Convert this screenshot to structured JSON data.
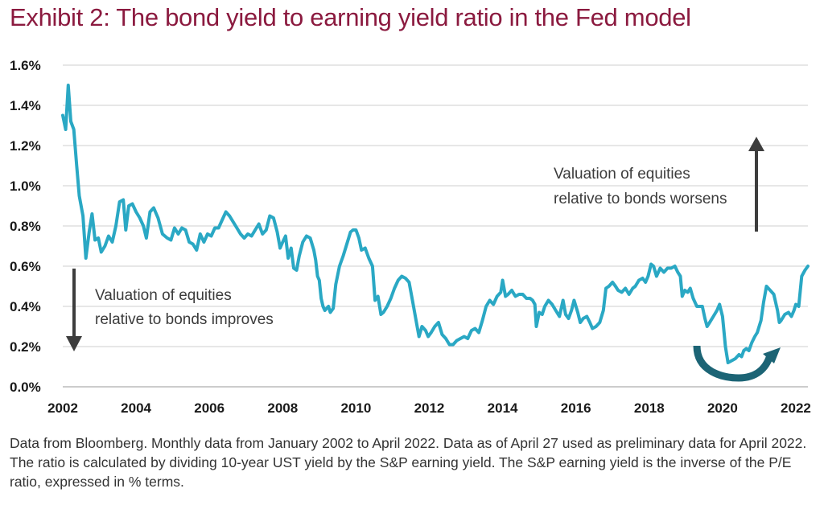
{
  "colors": {
    "title": "#8b1a3f",
    "line": "#2aa8c4",
    "arrow": "#3d3d3d",
    "curved_arrow": "#1c6475",
    "grid": "#cfcfcf"
  },
  "icons": {
    "up_arrow": "arrow-up-icon",
    "down_arrow": "arrow-down-icon",
    "curved_arrow": "curved-arrow-icon"
  },
  "footnote": "Data from Bloomberg. Monthly data from January 2002 to April 2022. Data as of April 27 used as preliminary data for April 2022. The ratio is calculated by dividing 10-year UST yield by the S&P earning yield. The S&P earning yield is the inverse of the P/E ratio, expressed in % terms.",
  "chart_data": {
    "type": "line",
    "title": "Exhibit 2: The bond yield to earning yield ratio in the Fed model",
    "xlabel": "",
    "ylabel": "",
    "xlim": [
      2002,
      2022.33
    ],
    "ylim": [
      0,
      1.6
    ],
    "grid": true,
    "x_ticks": [
      "2002",
      "2004",
      "2006",
      "2008",
      "2010",
      "2012",
      "2014",
      "2016",
      "2018",
      "2020",
      "2022"
    ],
    "y_ticks": [
      "0.0%",
      "0.2%",
      "0.4%",
      "0.6%",
      "0.8%",
      "1.0%",
      "1.2%",
      "1.4%",
      "1.6%"
    ],
    "annotations": {
      "worsens": [
        "Valuation of equities",
        "relative to bonds worsens"
      ],
      "improves": [
        "Valuation of equities",
        "relative to bonds improves"
      ]
    },
    "series": [
      {
        "values": [
          [
            2002.0,
            1.35
          ],
          [
            2002.08,
            1.28
          ],
          [
            2002.15,
            1.5
          ],
          [
            2002.22,
            1.32
          ],
          [
            2002.3,
            1.28
          ],
          [
            2002.38,
            1.1
          ],
          [
            2002.45,
            0.95
          ],
          [
            2002.55,
            0.85
          ],
          [
            2002.63,
            0.64
          ],
          [
            2002.72,
            0.77
          ],
          [
            2002.8,
            0.86
          ],
          [
            2002.88,
            0.73
          ],
          [
            2002.97,
            0.74
          ],
          [
            2003.05,
            0.67
          ],
          [
            2003.15,
            0.7
          ],
          [
            2003.25,
            0.75
          ],
          [
            2003.35,
            0.72
          ],
          [
            2003.45,
            0.8
          ],
          [
            2003.55,
            0.92
          ],
          [
            2003.65,
            0.93
          ],
          [
            2003.72,
            0.78
          ],
          [
            2003.8,
            0.9
          ],
          [
            2003.9,
            0.91
          ],
          [
            2004.0,
            0.87
          ],
          [
            2004.1,
            0.84
          ],
          [
            2004.2,
            0.8
          ],
          [
            2004.28,
            0.74
          ],
          [
            2004.38,
            0.87
          ],
          [
            2004.48,
            0.89
          ],
          [
            2004.6,
            0.84
          ],
          [
            2004.72,
            0.76
          ],
          [
            2004.85,
            0.74
          ],
          [
            2004.95,
            0.73
          ],
          [
            2005.05,
            0.79
          ],
          [
            2005.15,
            0.76
          ],
          [
            2005.25,
            0.79
          ],
          [
            2005.35,
            0.78
          ],
          [
            2005.45,
            0.72
          ],
          [
            2005.55,
            0.71
          ],
          [
            2005.65,
            0.68
          ],
          [
            2005.75,
            0.76
          ],
          [
            2005.85,
            0.72
          ],
          [
            2005.95,
            0.76
          ],
          [
            2006.05,
            0.75
          ],
          [
            2006.15,
            0.79
          ],
          [
            2006.25,
            0.79
          ],
          [
            2006.35,
            0.83
          ],
          [
            2006.45,
            0.87
          ],
          [
            2006.55,
            0.85
          ],
          [
            2006.65,
            0.82
          ],
          [
            2006.75,
            0.79
          ],
          [
            2006.85,
            0.76
          ],
          [
            2006.95,
            0.74
          ],
          [
            2007.05,
            0.76
          ],
          [
            2007.15,
            0.75
          ],
          [
            2007.25,
            0.78
          ],
          [
            2007.35,
            0.81
          ],
          [
            2007.45,
            0.76
          ],
          [
            2007.55,
            0.78
          ],
          [
            2007.65,
            0.85
          ],
          [
            2007.75,
            0.84
          ],
          [
            2007.85,
            0.77
          ],
          [
            2007.93,
            0.69
          ],
          [
            2008.0,
            0.72
          ],
          [
            2008.08,
            0.75
          ],
          [
            2008.15,
            0.64
          ],
          [
            2008.23,
            0.69
          ],
          [
            2008.3,
            0.59
          ],
          [
            2008.38,
            0.58
          ],
          [
            2008.45,
            0.65
          ],
          [
            2008.55,
            0.72
          ],
          [
            2008.65,
            0.75
          ],
          [
            2008.75,
            0.74
          ],
          [
            2008.85,
            0.68
          ],
          [
            2008.9,
            0.63
          ],
          [
            2008.95,
            0.55
          ],
          [
            2009.0,
            0.53
          ],
          [
            2009.05,
            0.44
          ],
          [
            2009.1,
            0.4
          ],
          [
            2009.15,
            0.38
          ],
          [
            2009.2,
            0.39
          ],
          [
            2009.25,
            0.4
          ],
          [
            2009.3,
            0.37
          ],
          [
            2009.38,
            0.39
          ],
          [
            2009.45,
            0.51
          ],
          [
            2009.55,
            0.6
          ],
          [
            2009.65,
            0.65
          ],
          [
            2009.75,
            0.71
          ],
          [
            2009.85,
            0.77
          ],
          [
            2009.92,
            0.78
          ],
          [
            2010.0,
            0.78
          ],
          [
            2010.08,
            0.74
          ],
          [
            2010.15,
            0.68
          ],
          [
            2010.25,
            0.69
          ],
          [
            2010.35,
            0.64
          ],
          [
            2010.45,
            0.6
          ],
          [
            2010.52,
            0.43
          ],
          [
            2010.6,
            0.45
          ],
          [
            2010.68,
            0.36
          ],
          [
            2010.75,
            0.37
          ],
          [
            2010.85,
            0.4
          ],
          [
            2010.95,
            0.44
          ],
          [
            2011.05,
            0.49
          ],
          [
            2011.15,
            0.53
          ],
          [
            2011.25,
            0.55
          ],
          [
            2011.35,
            0.54
          ],
          [
            2011.45,
            0.52
          ],
          [
            2011.55,
            0.42
          ],
          [
            2011.65,
            0.32
          ],
          [
            2011.72,
            0.25
          ],
          [
            2011.8,
            0.3
          ],
          [
            2011.9,
            0.28
          ],
          [
            2011.97,
            0.25
          ],
          [
            2012.05,
            0.27
          ],
          [
            2012.15,
            0.3
          ],
          [
            2012.25,
            0.32
          ],
          [
            2012.35,
            0.26
          ],
          [
            2012.45,
            0.24
          ],
          [
            2012.55,
            0.21
          ],
          [
            2012.65,
            0.21
          ],
          [
            2012.75,
            0.23
          ],
          [
            2012.85,
            0.24
          ],
          [
            2012.95,
            0.25
          ],
          [
            2013.05,
            0.24
          ],
          [
            2013.15,
            0.28
          ],
          [
            2013.25,
            0.29
          ],
          [
            2013.35,
            0.27
          ],
          [
            2013.45,
            0.33
          ],
          [
            2013.55,
            0.4
          ],
          [
            2013.65,
            0.43
          ],
          [
            2013.75,
            0.41
          ],
          [
            2013.85,
            0.45
          ],
          [
            2013.95,
            0.47
          ],
          [
            2014.0,
            0.53
          ],
          [
            2014.08,
            0.45
          ],
          [
            2014.15,
            0.46
          ],
          [
            2014.25,
            0.48
          ],
          [
            2014.35,
            0.45
          ],
          [
            2014.45,
            0.46
          ],
          [
            2014.55,
            0.46
          ],
          [
            2014.65,
            0.44
          ],
          [
            2014.75,
            0.44
          ],
          [
            2014.82,
            0.43
          ],
          [
            2014.88,
            0.41
          ],
          [
            2014.92,
            0.3
          ],
          [
            2015.0,
            0.37
          ],
          [
            2015.08,
            0.36
          ],
          [
            2015.15,
            0.4
          ],
          [
            2015.25,
            0.43
          ],
          [
            2015.35,
            0.41
          ],
          [
            2015.45,
            0.38
          ],
          [
            2015.55,
            0.35
          ],
          [
            2015.65,
            0.43
          ],
          [
            2015.72,
            0.36
          ],
          [
            2015.8,
            0.34
          ],
          [
            2015.88,
            0.38
          ],
          [
            2015.95,
            0.43
          ],
          [
            2016.05,
            0.37
          ],
          [
            2016.12,
            0.32
          ],
          [
            2016.2,
            0.34
          ],
          [
            2016.3,
            0.35
          ],
          [
            2016.38,
            0.32
          ],
          [
            2016.45,
            0.29
          ],
          [
            2016.55,
            0.3
          ],
          [
            2016.65,
            0.32
          ],
          [
            2016.75,
            0.38
          ],
          [
            2016.82,
            0.49
          ],
          [
            2016.9,
            0.5
          ],
          [
            2017.0,
            0.52
          ],
          [
            2017.08,
            0.5
          ],
          [
            2017.15,
            0.48
          ],
          [
            2017.25,
            0.47
          ],
          [
            2017.35,
            0.49
          ],
          [
            2017.45,
            0.46
          ],
          [
            2017.55,
            0.49
          ],
          [
            2017.62,
            0.5
          ],
          [
            2017.72,
            0.53
          ],
          [
            2017.82,
            0.54
          ],
          [
            2017.9,
            0.52
          ],
          [
            2017.97,
            0.55
          ],
          [
            2018.05,
            0.61
          ],
          [
            2018.12,
            0.6
          ],
          [
            2018.2,
            0.55
          ],
          [
            2018.3,
            0.59
          ],
          [
            2018.4,
            0.57
          ],
          [
            2018.5,
            0.59
          ],
          [
            2018.6,
            0.59
          ],
          [
            2018.7,
            0.6
          ],
          [
            2018.78,
            0.57
          ],
          [
            2018.85,
            0.55
          ],
          [
            2018.9,
            0.45
          ],
          [
            2018.97,
            0.48
          ],
          [
            2019.05,
            0.47
          ],
          [
            2019.12,
            0.49
          ],
          [
            2019.2,
            0.44
          ],
          [
            2019.3,
            0.4
          ],
          [
            2019.38,
            0.4
          ],
          [
            2019.45,
            0.4
          ],
          [
            2019.52,
            0.34
          ],
          [
            2019.58,
            0.3
          ],
          [
            2019.65,
            0.32
          ],
          [
            2019.75,
            0.35
          ],
          [
            2019.85,
            0.38
          ],
          [
            2019.92,
            0.41
          ],
          [
            2020.0,
            0.35
          ],
          [
            2020.08,
            0.2
          ],
          [
            2020.15,
            0.12
          ],
          [
            2020.25,
            0.13
          ],
          [
            2020.35,
            0.14
          ],
          [
            2020.45,
            0.16
          ],
          [
            2020.52,
            0.15
          ],
          [
            2020.58,
            0.18
          ],
          [
            2020.65,
            0.19
          ],
          [
            2020.72,
            0.18
          ],
          [
            2020.8,
            0.22
          ],
          [
            2020.88,
            0.25
          ],
          [
            2020.95,
            0.27
          ],
          [
            2021.05,
            0.33
          ],
          [
            2021.12,
            0.42
          ],
          [
            2021.2,
            0.5
          ],
          [
            2021.3,
            0.48
          ],
          [
            2021.4,
            0.46
          ],
          [
            2021.5,
            0.38
          ],
          [
            2021.55,
            0.32
          ],
          [
            2021.6,
            0.33
          ],
          [
            2021.7,
            0.36
          ],
          [
            2021.8,
            0.37
          ],
          [
            2021.88,
            0.35
          ],
          [
            2021.95,
            0.38
          ],
          [
            2022.0,
            0.41
          ],
          [
            2022.08,
            0.4
          ],
          [
            2022.16,
            0.55
          ],
          [
            2022.25,
            0.58
          ],
          [
            2022.33,
            0.6
          ]
        ]
      }
    ]
  }
}
